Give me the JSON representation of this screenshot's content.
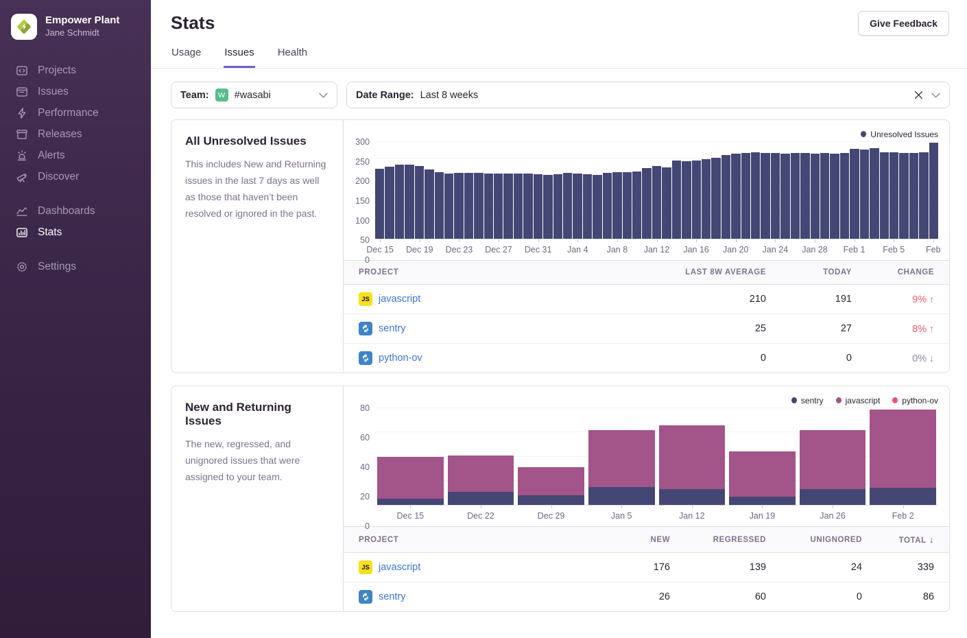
{
  "sidebar": {
    "org_name": "Empower Plant",
    "user_name": "Jane Schmidt",
    "primary_items": [
      {
        "label": "Projects",
        "icon": "projects"
      },
      {
        "label": "Issues",
        "icon": "issues"
      },
      {
        "label": "Performance",
        "icon": "performance"
      },
      {
        "label": "Releases",
        "icon": "releases"
      },
      {
        "label": "Alerts",
        "icon": "alerts"
      },
      {
        "label": "Discover",
        "icon": "discover"
      }
    ],
    "secondary_items": [
      {
        "label": "Dashboards",
        "icon": "dashboards"
      },
      {
        "label": "Stats",
        "icon": "stats",
        "active": true
      }
    ],
    "footer_items": [
      {
        "label": "Settings",
        "icon": "settings"
      }
    ]
  },
  "header": {
    "title": "Stats",
    "feedback_button": "Give Feedback"
  },
  "tabs": [
    {
      "label": "Usage",
      "active": false
    },
    {
      "label": "Issues",
      "active": true
    },
    {
      "label": "Health",
      "active": false
    }
  ],
  "filters": {
    "team_label": "Team:",
    "team_avatar_letter": "W",
    "team_value": "#wasabi",
    "date_label": "Date Range:",
    "date_value": "Last 8 weeks"
  },
  "panels": [
    {
      "title": "All Unresolved Issues",
      "description": "This includes New and Returning issues in the last 7 days as well as those that haven’t been resolved or ignored in the past.",
      "table": {
        "columns": [
          {
            "label": "PROJECT",
            "align": "left"
          },
          {
            "label": "LAST 8W AVERAGE",
            "align": "right"
          },
          {
            "label": "TODAY",
            "align": "right"
          },
          {
            "label": "CHANGE",
            "align": "right"
          }
        ],
        "rows": [
          {
            "project": "javascript",
            "badge": {
              "type": "js",
              "label": "JS"
            },
            "cells": [
              {
                "text": "210"
              },
              {
                "text": "191"
              },
              {
                "text": "9%",
                "arrow": "↑",
                "color": "#ef5a63"
              }
            ]
          },
          {
            "project": "sentry",
            "badge": {
              "type": "python"
            },
            "cells": [
              {
                "text": "25"
              },
              {
                "text": "27"
              },
              {
                "text": "8%",
                "arrow": "↑",
                "color": "#ef5a63"
              }
            ]
          },
          {
            "project": "python-ov",
            "badge": {
              "type": "python"
            },
            "cells": [
              {
                "text": "0"
              },
              {
                "text": "0"
              },
              {
                "text": "0%",
                "arrow": "↓",
                "color": "#9086a3"
              }
            ]
          }
        ]
      }
    },
    {
      "title": "New and Returning Issues",
      "description": "The new, regressed, and unignored issues that were assigned to your team.",
      "table": {
        "columns": [
          {
            "label": "PROJECT",
            "align": "left"
          },
          {
            "label": "NEW",
            "align": "right"
          },
          {
            "label": "REGRESSED",
            "align": "right"
          },
          {
            "label": "UNIGNORED",
            "align": "right"
          },
          {
            "label": "TOTAL",
            "align": "right",
            "sort": "↓"
          }
        ],
        "rows": [
          {
            "project": "javascript",
            "badge": {
              "type": "js",
              "label": "JS"
            },
            "cells": [
              {
                "text": "176"
              },
              {
                "text": "139"
              },
              {
                "text": "24"
              },
              {
                "text": "339"
              }
            ]
          },
          {
            "project": "sentry",
            "badge": {
              "type": "python"
            },
            "cells": [
              {
                "text": "26"
              },
              {
                "text": "60"
              },
              {
                "text": "0"
              },
              {
                "text": "86"
              }
            ]
          }
        ]
      }
    }
  ],
  "chart_data": [
    {
      "type": "bar",
      "title": "All Unresolved Issues",
      "legend": [
        {
          "label": "Unresolved Issues",
          "color": "#444674"
        }
      ],
      "ylim": [
        0,
        300
      ],
      "y_ticks": [
        0,
        50,
        100,
        150,
        200,
        250,
        300
      ],
      "tick_every": 4,
      "x_tick_labels": [
        "Dec 15",
        "Dec 19",
        "Dec 23",
        "Dec 27",
        "Dec 31",
        "Jan 4",
        "Jan 8",
        "Jan 12",
        "Jan 16",
        "Jan 20",
        "Jan 24",
        "Jan 28",
        "Feb 1",
        "Feb 5",
        "Feb"
      ],
      "bar_color": "#444674",
      "values": [
        217,
        224,
        230,
        229,
        226,
        214,
        206,
        202,
        205,
        204,
        204,
        202,
        203,
        203,
        203,
        203,
        200,
        198,
        200,
        204,
        202,
        200,
        197,
        205,
        206,
        207,
        209,
        220,
        225,
        222,
        243,
        241,
        242,
        247,
        251,
        259,
        263,
        267,
        269,
        266,
        266,
        263,
        265,
        265,
        263,
        265,
        264,
        267,
        279,
        277,
        281,
        269,
        269,
        267,
        266,
        268,
        297
      ]
    },
    {
      "type": "bar",
      "stacked": true,
      "title": "New and Returning Issues",
      "legend": [
        {
          "label": "sentry",
          "color": "#444674"
        },
        {
          "label": "javascript",
          "color": "#a35488"
        },
        {
          "label": "python-ov",
          "color": "#e1567c"
        }
      ],
      "ylim": [
        0,
        80
      ],
      "y_ticks": [
        0,
        20,
        40,
        60,
        80
      ],
      "categories": [
        "Dec 15",
        "Dec 22",
        "Dec 29",
        "Jan 5",
        "Jan 12",
        "Jan 19",
        "Jan 26",
        "Feb 2"
      ],
      "series": [
        {
          "name": "sentry",
          "color": "#444674",
          "values": [
            5,
            11,
            8,
            15,
            13,
            7,
            13,
            14
          ]
        },
        {
          "name": "javascript",
          "color": "#a35488",
          "values": [
            35,
            30,
            23,
            47,
            53,
            37,
            49,
            65
          ]
        },
        {
          "name": "python-ov",
          "color": "#e1567c",
          "values": [
            0,
            0,
            0,
            0,
            0,
            0,
            0,
            0
          ]
        }
      ]
    }
  ]
}
